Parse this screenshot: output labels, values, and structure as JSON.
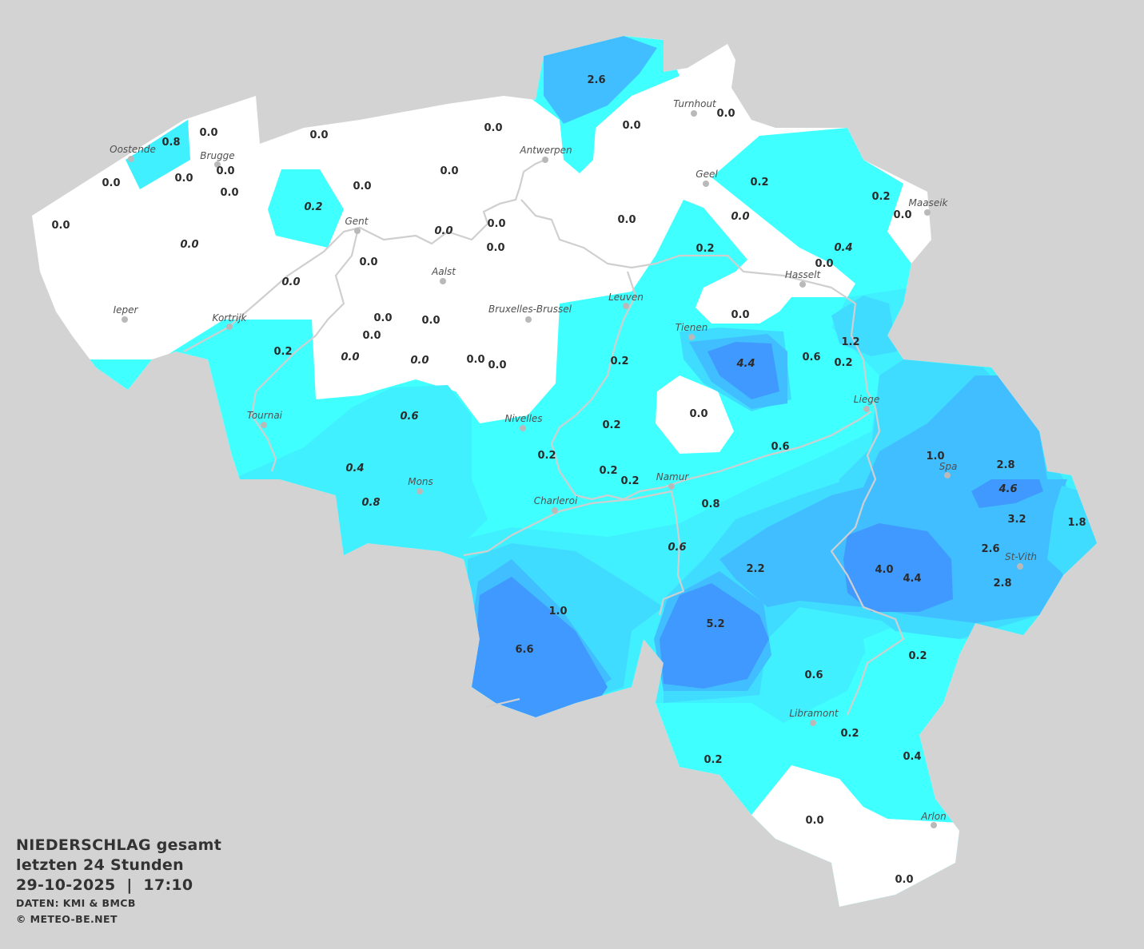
{
  "legend": {
    "title": "NIEDERSCHLAG gesamt",
    "period": "letzten 24 Stunden",
    "datetime": "29-10-2025  |  17:10",
    "source": "DATEN: KMI & BMCB",
    "copyright": "© METEO-BE.NET"
  },
  "colors": {
    "background": "#d3d3d3",
    "zero": "#ffffff",
    "level_0_2": "#40ffff",
    "level_0_6": "#40f0ff",
    "level_1_0": "#40dcff",
    "level_2_0": "#40beff",
    "level_4_0": "#4099ff",
    "river": "#cfcfcf",
    "text": "#2b2b2b"
  },
  "cities": [
    "Oostende",
    "Brugge",
    "Antwerpen",
    "Turnhout",
    "Geel",
    "Maaseik",
    "Gent",
    "Aalst",
    "Hasselt",
    "Leuven",
    "Bruxelles-Brussel",
    "Ieper",
    "Kortrijk",
    "Tienen",
    "Liege",
    "Tournai",
    "Nivelles",
    "Spa",
    "Namur",
    "Mons",
    "Charleroi",
    "St-Vith",
    "Libramont",
    "Arlon"
  ],
  "values": [
    {
      "v": "0.8"
    },
    {
      "v": "0.0"
    },
    {
      "v": "0.0"
    },
    {
      "v": "0.0"
    },
    {
      "v": "2.6"
    },
    {
      "v": "0.0"
    },
    {
      "v": "0.0"
    },
    {
      "v": "0.0"
    },
    {
      "v": "0.0"
    },
    {
      "v": "0.0"
    },
    {
      "v": "0.0"
    },
    {
      "v": "0.0"
    },
    {
      "v": "0.0"
    },
    {
      "v": "0.2"
    },
    {
      "v": "0.2"
    },
    {
      "v": "0.0"
    },
    {
      "v": "0.0"
    },
    {
      "v": "0.2",
      "italic": true
    },
    {
      "v": "0.0",
      "italic": true
    },
    {
      "v": "0.0"
    },
    {
      "v": "0.0"
    },
    {
      "v": "0.0",
      "italic": true
    },
    {
      "v": "0.0",
      "italic": true
    },
    {
      "v": "0.0"
    },
    {
      "v": "0.2"
    },
    {
      "v": "0.4",
      "italic": true
    },
    {
      "v": "0.0"
    },
    {
      "v": "0.0"
    },
    {
      "v": "0.0",
      "italic": true
    },
    {
      "v": "0.0"
    },
    {
      "v": "0.0"
    },
    {
      "v": "0.0"
    },
    {
      "v": "0.0"
    },
    {
      "v": "1.2"
    },
    {
      "v": "0.2"
    },
    {
      "v": "0.0",
      "italic": true
    },
    {
      "v": "0.0",
      "italic": true
    },
    {
      "v": "0.0"
    },
    {
      "v": "0.0"
    },
    {
      "v": "0.2"
    },
    {
      "v": "4.4",
      "italic": true
    },
    {
      "v": "0.6"
    },
    {
      "v": "0.2"
    },
    {
      "v": "0.6",
      "italic": true
    },
    {
      "v": "0.0"
    },
    {
      "v": "0.2"
    },
    {
      "v": "0.6"
    },
    {
      "v": "0.2"
    },
    {
      "v": "0.4",
      "italic": true
    },
    {
      "v": "1.0"
    },
    {
      "v": "2.8"
    },
    {
      "v": "0.2"
    },
    {
      "v": "0.2"
    },
    {
      "v": "4.6",
      "italic": true
    },
    {
      "v": "0.8",
      "italic": true
    },
    {
      "v": "0.8"
    },
    {
      "v": "3.2"
    },
    {
      "v": "1.8"
    },
    {
      "v": "0.6",
      "italic": true
    },
    {
      "v": "2.6"
    },
    {
      "v": "2.2"
    },
    {
      "v": "4.0"
    },
    {
      "v": "4.4"
    },
    {
      "v": "2.8"
    },
    {
      "v": "1.0"
    },
    {
      "v": "5.2"
    },
    {
      "v": "6.6"
    },
    {
      "v": "0.2"
    },
    {
      "v": "0.6"
    },
    {
      "v": "0.2"
    },
    {
      "v": "0.4"
    },
    {
      "v": "0.2"
    },
    {
      "v": "0.0"
    },
    {
      "v": "0.0"
    }
  ]
}
